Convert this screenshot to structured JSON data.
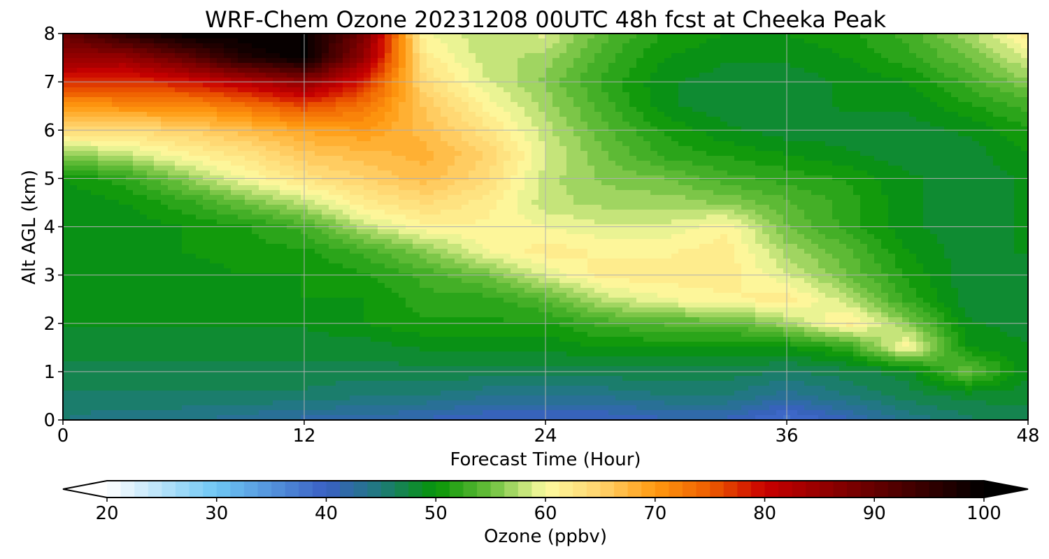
{
  "chart_data": {
    "type": "heatmap",
    "title": "WRF-Chem Ozone  20231208 00UTC 48h fcst at Cheeka Peak",
    "xlabel": "Forecast Time (Hour)",
    "ylabel": "Alt AGL (km)",
    "xlim": [
      0,
      48
    ],
    "ylim": [
      0,
      8
    ],
    "xticks": [
      0,
      12,
      24,
      36,
      48
    ],
    "yticks": [
      0,
      1,
      2,
      3,
      4,
      5,
      6,
      7,
      8
    ],
    "grid": true,
    "x": [
      0,
      3,
      6,
      9,
      12,
      15,
      18,
      21,
      24,
      27,
      30,
      33,
      36,
      39,
      42,
      45,
      48
    ],
    "y": [
      0,
      0.5,
      1,
      1.5,
      2,
      2.5,
      3,
      3.5,
      4,
      4.5,
      5,
      5.5,
      6,
      6.5,
      7,
      7.5,
      8
    ],
    "z": [
      [
        45,
        44,
        44,
        43,
        42,
        42,
        41,
        40,
        40,
        40,
        41,
        41,
        38,
        41,
        44,
        46,
        47
      ],
      [
        46,
        46,
        46,
        46,
        46,
        45,
        45,
        44,
        44,
        44,
        45,
        45,
        43,
        45,
        47,
        48,
        48
      ],
      [
        47,
        47,
        47,
        47,
        47,
        47,
        47,
        47,
        47,
        47,
        47,
        47,
        46,
        47,
        48,
        55,
        49
      ],
      [
        48,
        48,
        48,
        48,
        48,
        48,
        49,
        49,
        49,
        50,
        50,
        50,
        50,
        52,
        61,
        50,
        49
      ],
      [
        49,
        49,
        49,
        49,
        49,
        50,
        51,
        51,
        51,
        53,
        54,
        54,
        57,
        62,
        56,
        49,
        48
      ],
      [
        49,
        49,
        49,
        49,
        50,
        50,
        52,
        52,
        54,
        58,
        60,
        61,
        62,
        58,
        52,
        48,
        48
      ],
      [
        49,
        49,
        49,
        50,
        50,
        51,
        53,
        55,
        59,
        62,
        62,
        62,
        59,
        55,
        51,
        48,
        48
      ],
      [
        49,
        49,
        50,
        51,
        51,
        53,
        56,
        60,
        62,
        61,
        61,
        62,
        57,
        54,
        50,
        48,
        49
      ],
      [
        49,
        49,
        50,
        51,
        53,
        58,
        61,
        61,
        60,
        59,
        59,
        61,
        55,
        52,
        49,
        48,
        49
      ],
      [
        49,
        50,
        52,
        55,
        58,
        62,
        64,
        62,
        58,
        57,
        57,
        56,
        54,
        52,
        49,
        48,
        49
      ],
      [
        50,
        52,
        56,
        60,
        63,
        65,
        67,
        64,
        58,
        56,
        55,
        53,
        52,
        51,
        49,
        48,
        49
      ],
      [
        56,
        58,
        61,
        63,
        66,
        67,
        68,
        65,
        59,
        55,
        52,
        51,
        50,
        49,
        48,
        48,
        50
      ],
      [
        64,
        64,
        65,
        67,
        69,
        70,
        67,
        63,
        58,
        54,
        51,
        49,
        48,
        48,
        48,
        49,
        51
      ],
      [
        70,
        71,
        71,
        73,
        76,
        73,
        66,
        61,
        57,
        53,
        49,
        48,
        48,
        49,
        49,
        51,
        53
      ],
      [
        78,
        77,
        79,
        82,
        86,
        78,
        64,
        59,
        56,
        52,
        49,
        48,
        48,
        49,
        50,
        53,
        56
      ],
      [
        85,
        85,
        90,
        97,
        100,
        85,
        62,
        58,
        57,
        53,
        50,
        49,
        49,
        50,
        52,
        55,
        59
      ],
      [
        90,
        96,
        100,
        100,
        100,
        88,
        60,
        58,
        59,
        54,
        51,
        50,
        50,
        51,
        53,
        57,
        62
      ]
    ],
    "colorbar": {
      "label": "Ozone  (ppbv)",
      "min": 20,
      "max": 100,
      "ticks": [
        20,
        30,
        40,
        50,
        60,
        70,
        80,
        90,
        100
      ],
      "extend": "both",
      "orientation": "horizontal"
    },
    "colormap": [
      [
        20,
        "#ffffff"
      ],
      [
        30,
        "#6ec6f4"
      ],
      [
        40,
        "#3a60c4"
      ],
      [
        45,
        "#1e7a7a"
      ],
      [
        50,
        "#069506"
      ],
      [
        55,
        "#6abf3c"
      ],
      [
        60,
        "#fdfba0"
      ],
      [
        65,
        "#ffd36c"
      ],
      [
        70,
        "#ff9a10"
      ],
      [
        75,
        "#ee5c00"
      ],
      [
        80,
        "#c90000"
      ],
      [
        90,
        "#650000"
      ],
      [
        100,
        "#000000"
      ]
    ]
  }
}
